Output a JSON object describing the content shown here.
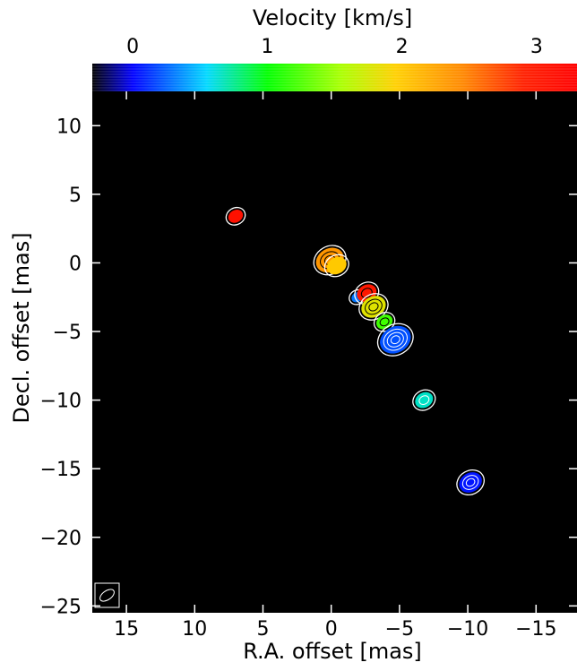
{
  "chart_data": {
    "type": "scatter",
    "title": "",
    "colorbar": {
      "label": "Velocity [km/s]",
      "range": [
        -0.3,
        3.3
      ],
      "ticks": [
        0,
        1,
        2,
        3
      ],
      "stops": [
        {
          "v": -0.3,
          "color": "#000000"
        },
        {
          "v": 0.0,
          "color": "#0000ff"
        },
        {
          "v": 0.55,
          "color": "#00d8ff"
        },
        {
          "v": 1.0,
          "color": "#00ff00"
        },
        {
          "v": 1.55,
          "color": "#aaff00"
        },
        {
          "v": 1.95,
          "color": "#ffd000"
        },
        {
          "v": 2.45,
          "color": "#ff8800"
        },
        {
          "v": 2.9,
          "color": "#ff2000"
        },
        {
          "v": 3.3,
          "color": "#ff0000"
        }
      ]
    },
    "xaxis": {
      "label": "R.A. offset [mas]",
      "range": [
        17.5,
        -18
      ],
      "ticks": [
        15,
        10,
        5,
        0,
        -5,
        -10,
        -15
      ],
      "tick_labels": [
        "15",
        "10",
        "5",
        "0",
        "−5",
        "−10",
        "−15"
      ]
    },
    "yaxis": {
      "label": "Decl. offset [mas]",
      "range": [
        -25.5,
        12.5
      ],
      "ticks": [
        10,
        5,
        0,
        -5,
        -10,
        -15,
        -20,
        -25
      ],
      "tick_labels": [
        "10",
        "5",
        "0",
        "−5",
        "−10",
        "−15",
        "−20",
        "−25"
      ]
    },
    "background_color": "#000000",
    "beam": {
      "location": "bottom-left"
    },
    "points": [
      {
        "x": 7.0,
        "y": 3.4,
        "velocity": 3.1,
        "size": 0.45,
        "contours": 0
      },
      {
        "x": 0.1,
        "y": 0.2,
        "velocity": 2.35,
        "size": 0.85,
        "contours": 2
      },
      {
        "x": -0.4,
        "y": -0.2,
        "velocity": 2.0,
        "size": 0.6,
        "contours": 0
      },
      {
        "x": -1.9,
        "y": -2.5,
        "velocity": 0.3,
        "size": 0.35,
        "contours": 0
      },
      {
        "x": -2.6,
        "y": -2.2,
        "velocity": 3.0,
        "size": 0.6,
        "contours": 1
      },
      {
        "x": -3.1,
        "y": -3.2,
        "velocity": 1.8,
        "size": 0.75,
        "contours": 2
      },
      {
        "x": -3.9,
        "y": -4.3,
        "velocity": 1.2,
        "size": 0.5,
        "contours": 1
      },
      {
        "x": -4.7,
        "y": -5.6,
        "velocity": 0.2,
        "size": 0.95,
        "contours": 3
      },
      {
        "x": -6.8,
        "y": -10.0,
        "velocity": 0.65,
        "size": 0.55,
        "contours": 1
      },
      {
        "x": -10.2,
        "y": -16.0,
        "velocity": 0.05,
        "size": 0.7,
        "contours": 2
      }
    ]
  }
}
